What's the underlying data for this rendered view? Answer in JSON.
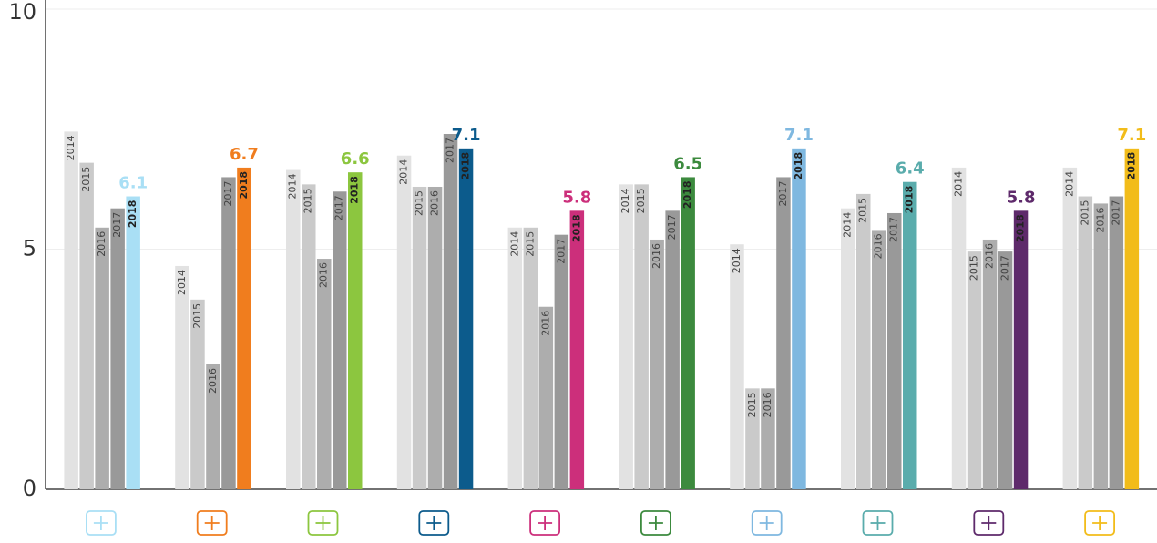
{
  "chart_data": {
    "type": "bar",
    "categories": [
      null,
      null,
      null,
      null,
      null,
      null,
      null,
      null,
      null,
      null
    ],
    "series": [
      {
        "name": "2014",
        "color": "#e2e2e2",
        "values": [
          7.45,
          4.65,
          6.65,
          6.95,
          5.45,
          6.35,
          5.1,
          5.85,
          6.7,
          6.7
        ]
      },
      {
        "name": "2015",
        "color": "#cacaca",
        "values": [
          6.8,
          3.95,
          6.35,
          6.3,
          5.45,
          6.35,
          2.1,
          6.15,
          4.95,
          6.1
        ]
      },
      {
        "name": "2016",
        "color": "#adadad",
        "values": [
          5.45,
          2.6,
          4.8,
          6.3,
          3.8,
          5.2,
          2.1,
          5.4,
          5.2,
          5.95
        ]
      },
      {
        "name": "2017",
        "color": "#999999",
        "values": [
          5.85,
          6.5,
          6.2,
          7.4,
          5.3,
          5.8,
          6.5,
          5.75,
          4.95,
          6.1
        ]
      },
      {
        "name": "2018",
        "colors": [
          "#a9dff5",
          "#f07d1e",
          "#8cc63f",
          "#0c5b8c",
          "#cc2f7b",
          "#3c8a3e",
          "#7fb8e0",
          "#5aacac",
          "#5e2a6b",
          "#f2bc1a"
        ],
        "values": [
          6.1,
          6.7,
          6.6,
          7.1,
          5.8,
          6.5,
          7.1,
          6.4,
          5.8,
          7.1
        ]
      }
    ],
    "ylim": [
      0,
      10
    ],
    "yticks": [
      0,
      5,
      10
    ],
    "grid": true
  }
}
